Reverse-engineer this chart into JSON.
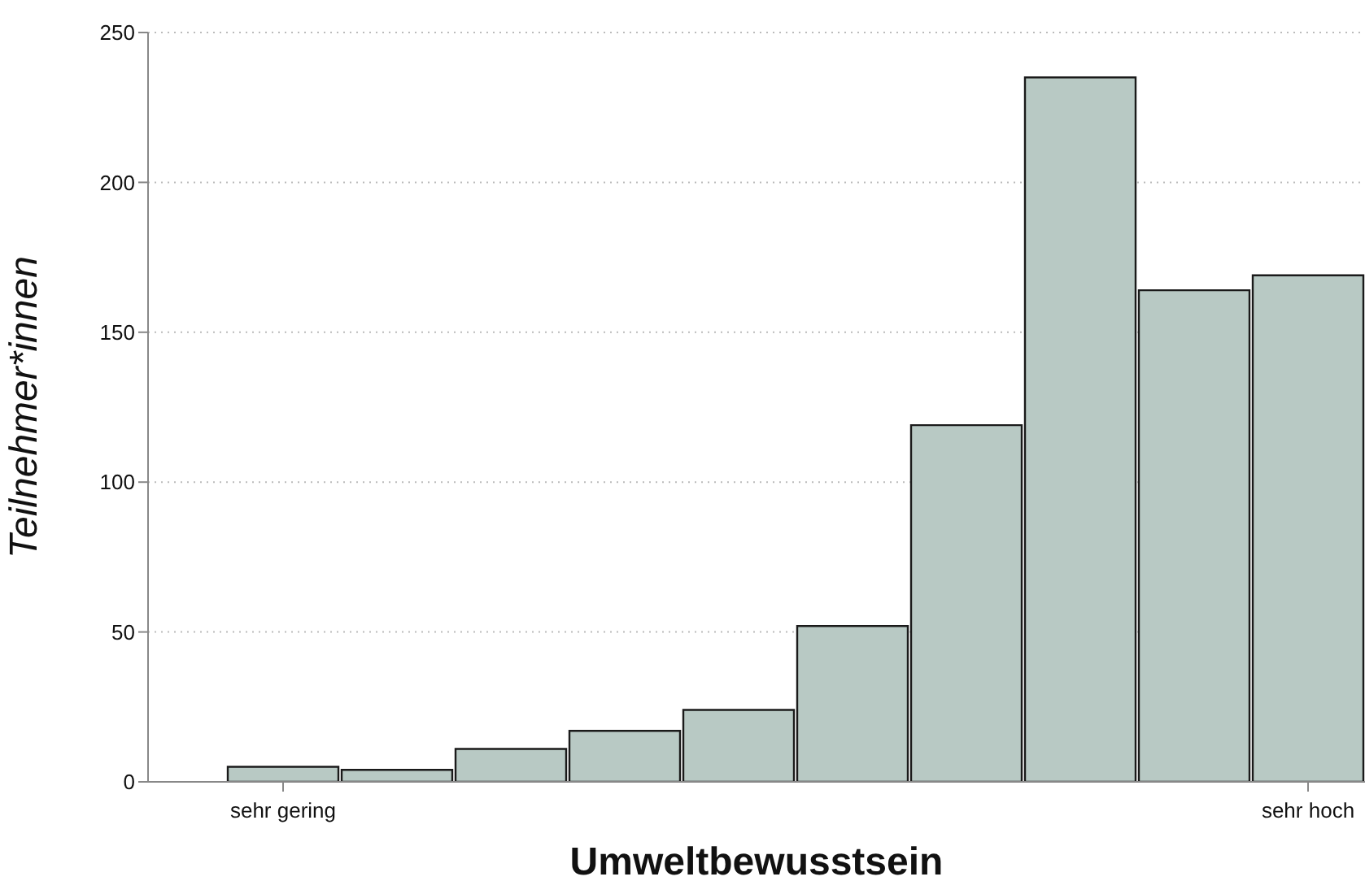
{
  "chart_data": {
    "type": "bar",
    "xlabel": "Umweltbewusstsein",
    "ylabel": "Teilnehmer*innen",
    "categories": [
      "sehr gering",
      null,
      null,
      null,
      null,
      null,
      null,
      null,
      null,
      "sehr hoch"
    ],
    "values": [
      5,
      4,
      11,
      17,
      24,
      52,
      119,
      235,
      164,
      169
    ],
    "color": "#b8c9c4",
    "ylim": [
      0,
      250
    ],
    "yticks": [
      0,
      50,
      100,
      150,
      200,
      250
    ],
    "grid": "y"
  }
}
